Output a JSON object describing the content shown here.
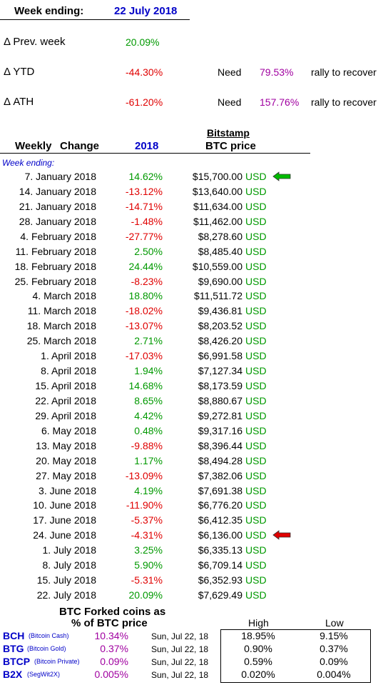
{
  "header": {
    "week_ending_label": "Week ending:",
    "week_ending_date": "22 July 2018"
  },
  "summary": [
    {
      "label": "Δ Prev. week",
      "value": "20.09%",
      "need_label": "",
      "need_value": "",
      "recover_text": ""
    },
    {
      "label": "Δ YTD",
      "value": "-44.30%",
      "need_label": "Need",
      "need_value": "79.53%",
      "recover_text": "rally to recover"
    },
    {
      "label": "Δ ATH",
      "value": "-61.20%",
      "need_label": "Need",
      "need_value": "157.76%",
      "recover_text": "rally to recover"
    }
  ],
  "table_header": {
    "exchange": "Bitstamp",
    "weekly": "Weekly",
    "change": "Change",
    "year": "2018",
    "price": "BTC price",
    "week_ending_note": "Week ending:"
  },
  "weekly_rows": [
    {
      "date": "7. January 2018",
      "change": "14.62%",
      "price": "$15,700.00",
      "currency": "USD",
      "marker": "green-left"
    },
    {
      "date": "14. January 2018",
      "change": "-13.12%",
      "price": "$13,640.00",
      "currency": "USD"
    },
    {
      "date": "21. January 2018",
      "change": "-14.71%",
      "price": "$11,634.00",
      "currency": "USD"
    },
    {
      "date": "28. January 2018",
      "change": "-1.48%",
      "price": "$11,462.00",
      "currency": "USD"
    },
    {
      "date": "4. February 2018",
      "change": "-27.77%",
      "price": "$8,278.60",
      "currency": "USD"
    },
    {
      "date": "11. February 2018",
      "change": "2.50%",
      "price": "$8,485.40",
      "currency": "USD"
    },
    {
      "date": "18. February 2018",
      "change": "24.44%",
      "price": "$10,559.00",
      "currency": "USD"
    },
    {
      "date": "25. February 2018",
      "change": "-8.23%",
      "price": "$9,690.00",
      "currency": "USD"
    },
    {
      "date": "4. March 2018",
      "change": "18.80%",
      "price": "$11,511.72",
      "currency": "USD"
    },
    {
      "date": "11. March 2018",
      "change": "-18.02%",
      "price": "$9,436.81",
      "currency": "USD"
    },
    {
      "date": "18. March 2018",
      "change": "-13.07%",
      "price": "$8,203.52",
      "currency": "USD"
    },
    {
      "date": "25. March 2018",
      "change": "2.71%",
      "price": "$8,426.20",
      "currency": "USD"
    },
    {
      "date": "1. April 2018",
      "change": "-17.03%",
      "price": "$6,991.58",
      "currency": "USD"
    },
    {
      "date": "8. April 2018",
      "change": "1.94%",
      "price": "$7,127.34",
      "currency": "USD"
    },
    {
      "date": "15. April 2018",
      "change": "14.68%",
      "price": "$8,173.59",
      "currency": "USD"
    },
    {
      "date": "22. April 2018",
      "change": "8.65%",
      "price": "$8,880.67",
      "currency": "USD"
    },
    {
      "date": "29. April 2018",
      "change": "4.42%",
      "price": "$9,272.81",
      "currency": "USD"
    },
    {
      "date": "6. May 2018",
      "change": "0.48%",
      "price": "$9,317.16",
      "currency": "USD"
    },
    {
      "date": "13. May 2018",
      "change": "-9.88%",
      "price": "$8,396.44",
      "currency": "USD"
    },
    {
      "date": "20. May 2018",
      "change": "1.17%",
      "price": "$8,494.28",
      "currency": "USD"
    },
    {
      "date": "27. May 2018",
      "change": "-13.09%",
      "price": "$7,382.06",
      "currency": "USD"
    },
    {
      "date": "3. June 2018",
      "change": "4.19%",
      "price": "$7,691.38",
      "currency": "USD"
    },
    {
      "date": "10. June 2018",
      "change": "-11.90%",
      "price": "$6,776.20",
      "currency": "USD"
    },
    {
      "date": "17. June 2018",
      "change": "-5.37%",
      "price": "$6,412.35",
      "currency": "USD"
    },
    {
      "date": "24. June 2018",
      "change": "-4.31%",
      "price": "$6,136.00",
      "currency": "USD",
      "marker": "red-left"
    },
    {
      "date": "1. July 2018",
      "change": "3.25%",
      "price": "$6,335.13",
      "currency": "USD"
    },
    {
      "date": "8. July 2018",
      "change": "5.90%",
      "price": "$6,709.14",
      "currency": "USD"
    },
    {
      "date": "15. July 2018",
      "change": "-5.31%",
      "price": "$6,352.93",
      "currency": "USD"
    },
    {
      "date": "22. July 2018",
      "change": "20.09%",
      "price": "$7,629.49",
      "currency": "USD"
    }
  ],
  "forked": {
    "title_line1": "BTC Forked coins as",
    "title_line2": "%  of BTC price",
    "high_label": "High",
    "low_label": "Low",
    "rows": [
      {
        "ticker": "BCH",
        "name": "(Bitcoin Cash)",
        "pct": "10.34%",
        "date": "Sun, Jul 22, 18",
        "high": "18.95%",
        "low": "9.15%"
      },
      {
        "ticker": "BTG",
        "name": "(Bitcoin Gold)",
        "pct": "0.37%",
        "date": "Sun, Jul 22, 18",
        "high": "0.90%",
        "low": "0.37%"
      },
      {
        "ticker": "BTCP",
        "name": "(Bitcoin Private)",
        "pct": "0.09%",
        "date": "Sun, Jul 22, 18",
        "high": "0.59%",
        "low": "0.09%"
      },
      {
        "ticker": "B2X",
        "name": "(SegWit2X)",
        "pct": "0.005%",
        "date": "Sun, Jul 22, 18",
        "high": "0.020%",
        "low": "0.004%"
      }
    ]
  },
  "colors": {
    "positive": "#009900",
    "negative": "#e00000",
    "need": "#a000a0",
    "blue": "#0000c8",
    "arrow_green": "#00bb00",
    "arrow_red": "#e00000"
  },
  "icons": {
    "green_marker": "left-arrow-icon",
    "red_marker": "left-arrow-icon"
  }
}
